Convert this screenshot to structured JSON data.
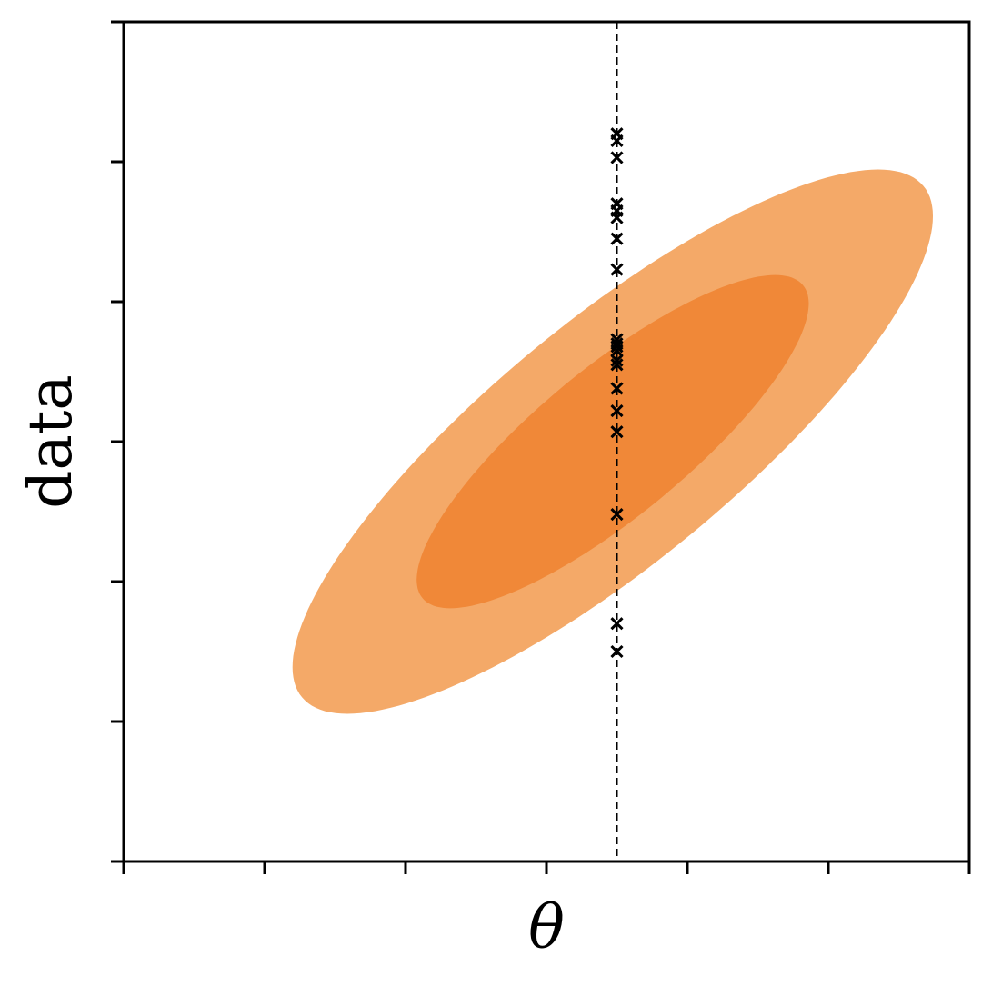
{
  "chart_data": {
    "type": "scatter",
    "xlabel": "θ",
    "ylabel": "data",
    "xlim": [
      0,
      6
    ],
    "ylim": [
      0,
      6
    ],
    "x_ticks": [
      0,
      1,
      2,
      3,
      4,
      5,
      6
    ],
    "y_ticks": [
      0,
      1,
      2,
      3,
      4,
      5,
      6
    ],
    "tick_labels_visible": false,
    "grid": false,
    "legend": "none",
    "reference_line": {
      "orientation": "vertical",
      "x": 3.5,
      "style": "dashed",
      "color": "#000000"
    },
    "contours": [
      {
        "level": "outer",
        "color": "#f4a968",
        "center": [
          3.47,
          3.0
        ],
        "cov": [
          [
            0.86,
            0.61
          ],
          [
            0.61,
            0.63
          ]
        ],
        "k": 2.45
      },
      {
        "level": "inner",
        "color": "#f08838",
        "center": [
          3.47,
          3.0
        ],
        "cov": [
          [
            0.86,
            0.61
          ],
          [
            0.61,
            0.63
          ]
        ],
        "k": 1.5
      }
    ],
    "points": {
      "marker": "x",
      "color": "#000000",
      "x": [
        3.5,
        3.5,
        3.5,
        3.5,
        3.5,
        3.5,
        3.5,
        3.5,
        3.5,
        3.5,
        3.5,
        3.5,
        3.5,
        3.5,
        3.5,
        3.5,
        3.5,
        3.5,
        3.5,
        3.5
      ],
      "y": [
        5.2,
        5.15,
        5.03,
        4.7,
        4.65,
        4.6,
        4.45,
        4.23,
        3.73,
        3.7,
        3.68,
        3.65,
        3.58,
        3.55,
        3.38,
        3.22,
        3.07,
        2.48,
        1.7,
        1.5
      ]
    }
  }
}
